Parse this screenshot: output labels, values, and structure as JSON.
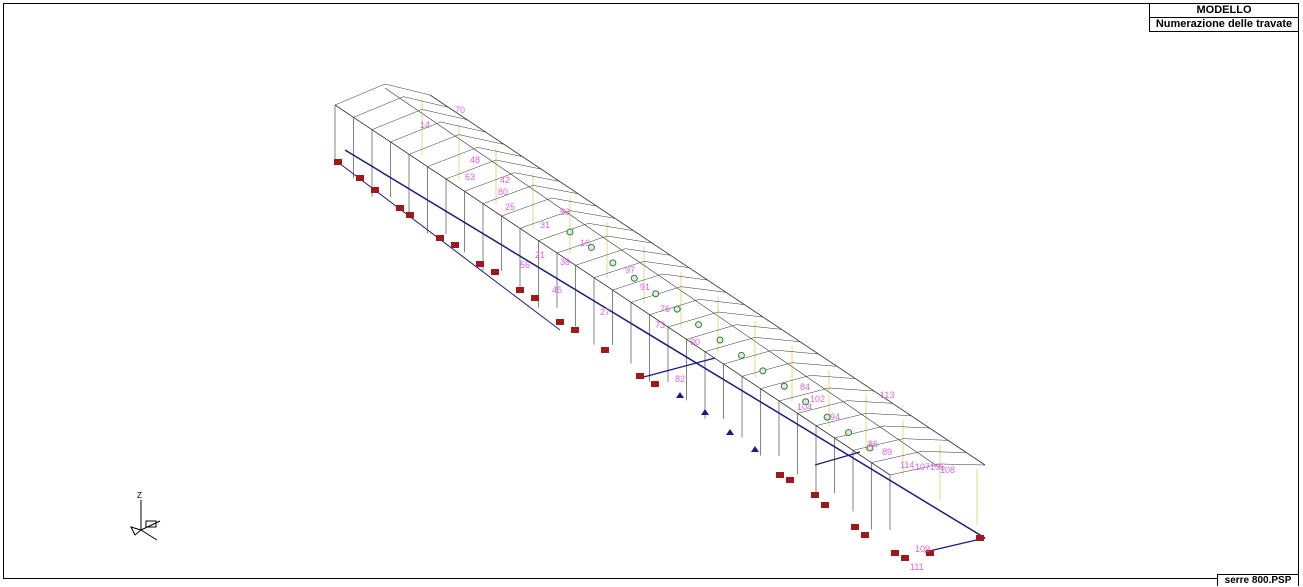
{
  "header": {
    "title": "MODELLO",
    "subtitle": "Numerazione delle travate"
  },
  "footer": {
    "file_name": "serre 800.PSP"
  },
  "axis": {
    "z_label": "Z"
  },
  "beam_labels": [
    "70",
    "42",
    "31",
    "38",
    "45",
    "56",
    "80",
    "63",
    "91",
    "14",
    "48",
    "25",
    "97",
    "21",
    "73",
    "27",
    "53",
    "76",
    "82",
    "90",
    "84",
    "102",
    "104",
    "94",
    "113",
    "89",
    "86",
    "114",
    "107",
    "105",
    "109",
    "111",
    "108",
    "16"
  ],
  "colors": {
    "structure": "#333333",
    "bracing": "#1a1a8c",
    "label": "#e060e0",
    "support": "#a01818",
    "node": "#3a7a3a"
  }
}
